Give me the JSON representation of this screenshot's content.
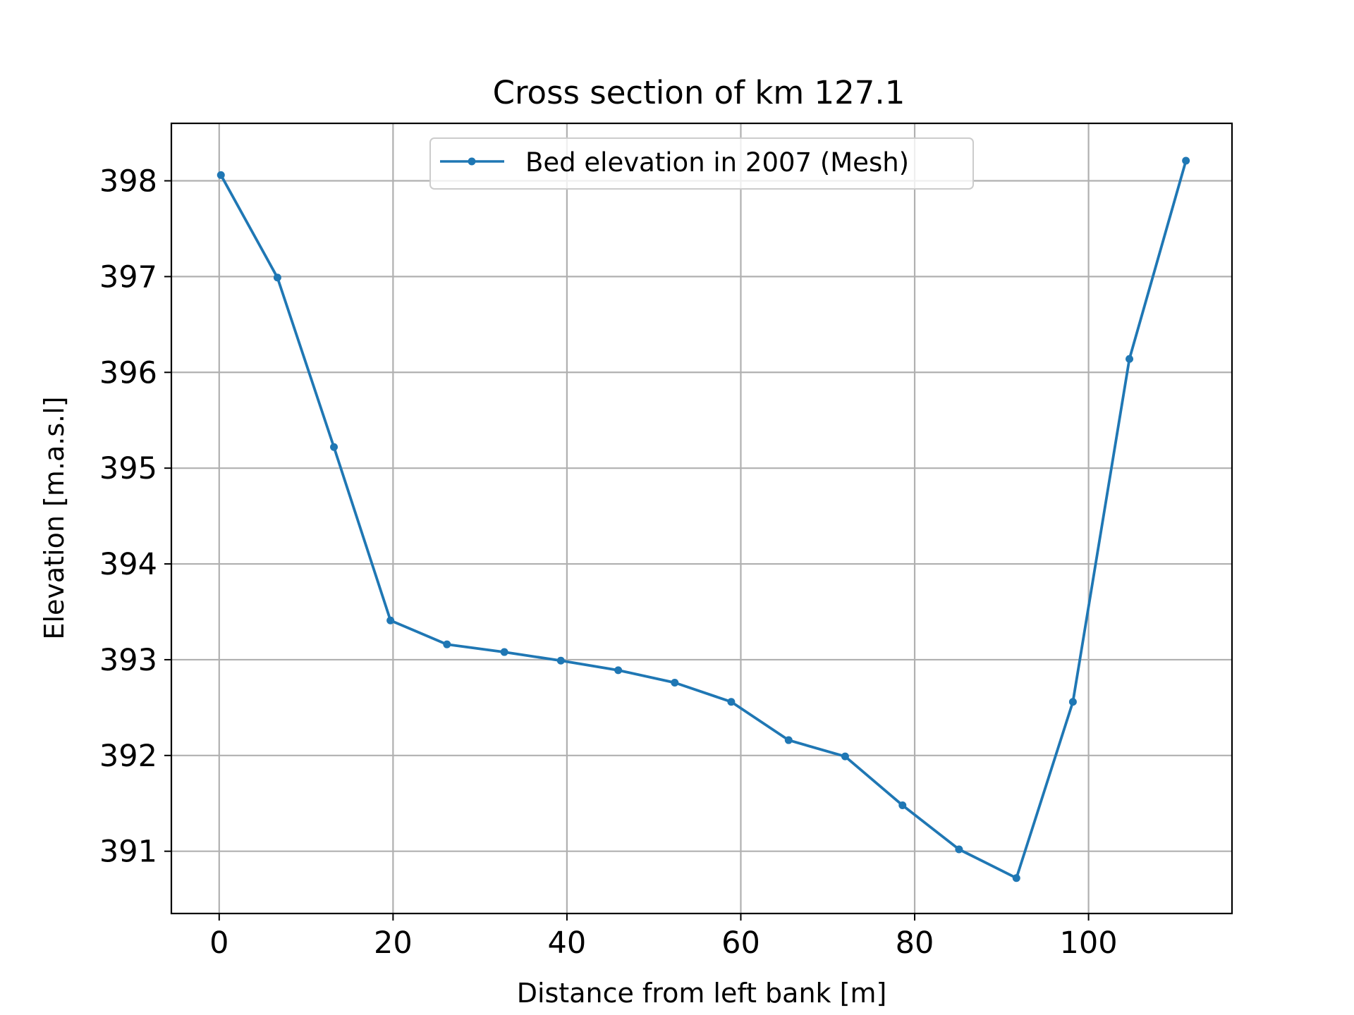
{
  "chart_data": {
    "type": "line",
    "title": "Cross section of km 127.1",
    "xlabel": "Distance from left bank [m]",
    "ylabel": "Elevation [m.a.s.l]",
    "xlim": [
      -5.5,
      116.5
    ],
    "ylim": [
      390.35,
      398.6
    ],
    "xticks": [
      0,
      20,
      40,
      60,
      80,
      100
    ],
    "yticks": [
      391,
      392,
      393,
      394,
      395,
      396,
      397,
      398
    ],
    "grid": true,
    "legend_position": "upper center",
    "series": [
      {
        "name": "Bed elevation in 2007 (Mesh)",
        "color": "#1f77b4",
        "marker": "point",
        "x": [
          0.2,
          6.7,
          13.2,
          19.7,
          26.2,
          32.8,
          39.3,
          45.9,
          52.4,
          58.9,
          65.5,
          72.0,
          78.6,
          85.1,
          91.7,
          98.2,
          104.7,
          111.2
        ],
        "y": [
          398.06,
          396.99,
          395.22,
          393.41,
          393.16,
          393.08,
          392.99,
          392.89,
          392.76,
          392.56,
          392.16,
          391.99,
          391.48,
          391.02,
          390.72,
          392.56,
          396.14,
          398.21
        ]
      }
    ]
  }
}
